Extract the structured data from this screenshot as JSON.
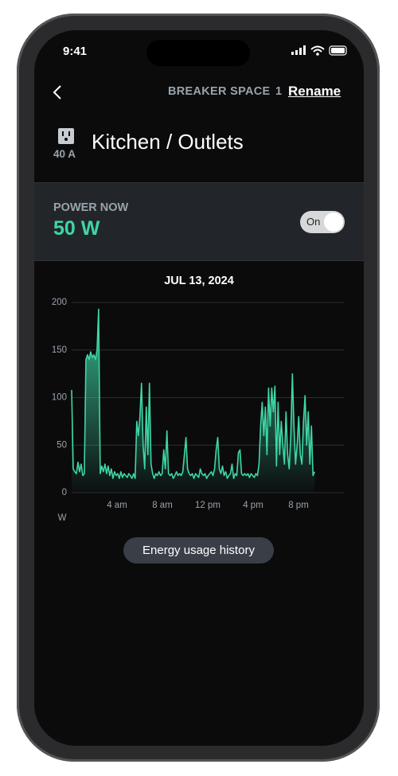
{
  "status_bar": {
    "time": "9:41"
  },
  "header": {
    "label": "BREAKER SPACE",
    "number": "1",
    "action": "Rename"
  },
  "circuit": {
    "amps": "40 A",
    "name": "Kitchen / Outlets"
  },
  "power": {
    "label": "POWER NOW",
    "value": "50 W",
    "toggle": "On"
  },
  "chart_data": {
    "type": "area",
    "title": "JUL 13, 2024",
    "y_label": "W",
    "color": "#3ed6a6",
    "grid": true,
    "xlim": [
      0,
      24
    ],
    "xticks": [
      {
        "value": 4,
        "label": "4 am"
      },
      {
        "value": 8,
        "label": "8 am"
      },
      {
        "value": 12,
        "label": "12 pm"
      },
      {
        "value": 16,
        "label": "4 pm"
      },
      {
        "value": 20,
        "label": "8 pm"
      }
    ],
    "ylim": [
      0,
      200
    ],
    "yticks": [
      0,
      50,
      100,
      150,
      200
    ],
    "x": [
      0,
      0.14,
      0.28,
      0.42,
      0.56,
      0.7,
      0.84,
      0.98,
      1.12,
      1.26,
      1.4,
      1.54,
      1.68,
      1.82,
      1.96,
      2.1,
      2.24,
      2.38,
      2.52,
      2.66,
      2.8,
      2.94,
      3.08,
      3.22,
      3.36,
      3.5,
      3.64,
      3.78,
      3.92,
      4.06,
      4.2,
      4.34,
      4.48,
      4.62,
      4.76,
      4.9,
      5.04,
      5.18,
      5.32,
      5.46,
      5.6,
      5.74,
      5.88,
      6.02,
      6.16,
      6.3,
      6.44,
      6.58,
      6.72,
      6.86,
      7,
      7.14,
      7.28,
      7.42,
      7.56,
      7.7,
      7.84,
      7.98,
      8.12,
      8.26,
      8.4,
      8.54,
      8.68,
      8.82,
      8.96,
      9.1,
      9.24,
      9.38,
      9.52,
      9.66,
      9.8,
      9.94,
      10.08,
      10.22,
      10.36,
      10.5,
      10.64,
      10.78,
      10.92,
      11.06,
      11.2,
      11.34,
      11.48,
      11.62,
      11.76,
      11.9,
      12.04,
      12.18,
      12.32,
      12.46,
      12.6,
      12.74,
      12.88,
      13.02,
      13.16,
      13.3,
      13.44,
      13.58,
      13.72,
      13.86,
      14,
      14.14,
      14.28,
      14.42,
      14.56,
      14.7,
      14.84,
      14.98,
      15.12,
      15.26,
      15.4,
      15.54,
      15.68,
      15.82,
      15.96,
      16.1,
      16.24,
      16.38,
      16.52,
      16.66,
      16.8,
      16.94,
      17.08,
      17.22,
      17.36,
      17.5,
      17.64,
      17.78,
      17.92,
      18.06,
      18.2,
      18.34,
      18.48,
      18.62,
      18.76,
      18.9,
      19.04,
      19.18,
      19.32,
      19.46,
      19.6,
      19.74,
      19.88,
      20.02,
      20.16,
      20.3,
      20.44,
      20.58,
      20.72,
      20.86,
      21,
      21.14,
      21.28,
      21.42
    ],
    "values": [
      108,
      25,
      22,
      20,
      32,
      22,
      30,
      18,
      20,
      140,
      145,
      140,
      148,
      142,
      145,
      140,
      150,
      193,
      20,
      28,
      22,
      30,
      20,
      28,
      18,
      25,
      15,
      22,
      18,
      20,
      15,
      22,
      16,
      20,
      18,
      16,
      20,
      18,
      15,
      20,
      15,
      75,
      60,
      80,
      115,
      50,
      25,
      90,
      40,
      115,
      30,
      20,
      15,
      20,
      18,
      22,
      18,
      20,
      45,
      25,
      65,
      20,
      18,
      20,
      15,
      18,
      22,
      18,
      20,
      18,
      22,
      40,
      58,
      25,
      20,
      18,
      20,
      15,
      20,
      18,
      16,
      25,
      20,
      18,
      20,
      15,
      18,
      20,
      22,
      18,
      25,
      45,
      58,
      25,
      20,
      28,
      18,
      22,
      15,
      18,
      20,
      30,
      15,
      20,
      18,
      42,
      45,
      20,
      18,
      20,
      18,
      20,
      16,
      20,
      18,
      16,
      20,
      18,
      30,
      70,
      95,
      60,
      90,
      40,
      110,
      70,
      110,
      85,
      112,
      28,
      95,
      40,
      75,
      50,
      30,
      85,
      40,
      25,
      60,
      125,
      70,
      30,
      50,
      80,
      40,
      30,
      75,
      102,
      50,
      85,
      30,
      70,
      18,
      22
    ]
  },
  "footer": {
    "button": "Energy usage history"
  }
}
